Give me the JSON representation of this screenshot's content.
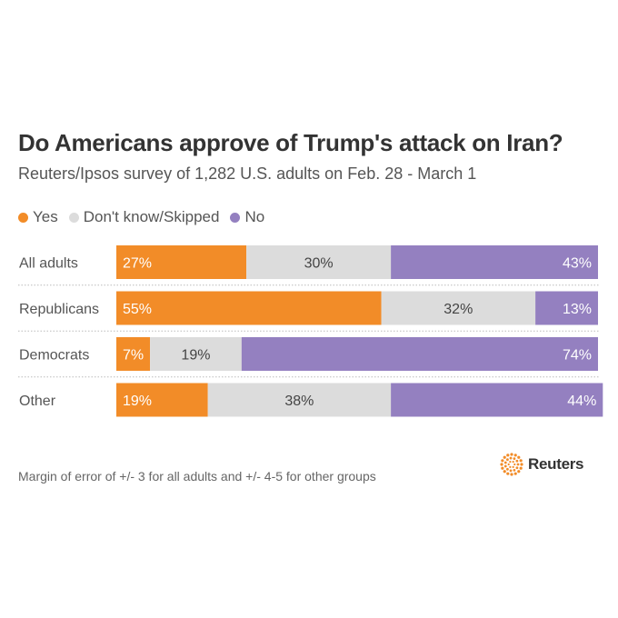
{
  "title": "Do Americans approve of Trump's attack on Iran?",
  "subtitle": "Reuters/Ipsos survey of 1,282 U.S. adults on Feb. 28 - March 1",
  "legend": [
    {
      "label": "Yes",
      "color": "#f28c28"
    },
    {
      "label": "Don't know/Skipped",
      "color": "#dcdcdc"
    },
    {
      "label": "No",
      "color": "#9480c0"
    }
  ],
  "footnote": "Margin of error of +/- 3 for all adults and +/- 4-5 for other groups",
  "logo": {
    "text": "Reuters",
    "icon": "reuters-logo-icon",
    "color": "#f28c28"
  },
  "chart_data": {
    "type": "bar",
    "orientation": "horizontal",
    "stacked": true,
    "percent_stacked": true,
    "categories": [
      "All adults",
      "Republicans",
      "Democrats",
      "Other"
    ],
    "series": [
      {
        "name": "Yes",
        "values": [
          27,
          55,
          7,
          19
        ],
        "labels": [
          "27%",
          "55%",
          "7%",
          "19%"
        ],
        "color": "#f28c28"
      },
      {
        "name": "Don't know/Skipped",
        "values": [
          30,
          32,
          19,
          38
        ],
        "labels": [
          "30%",
          "32%",
          "19%",
          "38%"
        ],
        "color": "#dcdcdc"
      },
      {
        "name": "No",
        "values": [
          43,
          13,
          74,
          44
        ],
        "labels": [
          "43%",
          "13%",
          "74%",
          "44%"
        ],
        "color": "#9480c0"
      }
    ],
    "xlim": [
      0,
      100
    ],
    "grid": false,
    "legend_position": "top-left"
  }
}
